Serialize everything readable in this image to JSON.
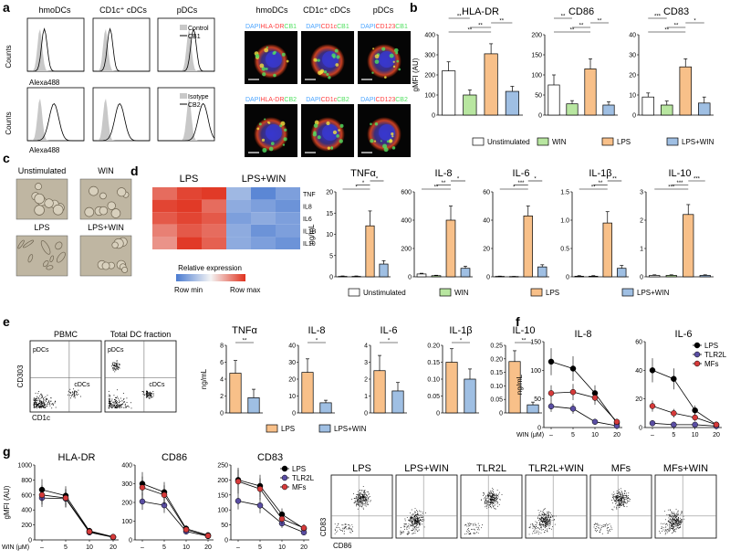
{
  "panel_letters": [
    "a",
    "b",
    "c",
    "d",
    "e",
    "f",
    "g"
  ],
  "colors": {
    "unstim": "#ffffff",
    "win": "#b8e6a0",
    "lps": "#f8c089",
    "lpswin": "#9fbfe3",
    "lpsLine": "#000000",
    "tlr2lLine": "#5a4ea3",
    "mfsLine": "#d63a3a",
    "fillCtrl": "#c8c8c8",
    "heatLow": "#4a7bd1",
    "heatHigh": "#e0321e"
  },
  "legend": [
    "Unstimulated",
    "WIN",
    "LPS",
    "LPS+WIN"
  ],
  "legend_short": [
    "LPS",
    "LPS+WIN"
  ],
  "a": {
    "headers": [
      "hmoDCs",
      "CD1c⁺ cDCs",
      "pDCs"
    ],
    "ylabel": "Counts",
    "xlabel": "Alexa488",
    "legend_top": [
      "Control",
      "CB1"
    ],
    "legend_bot": [
      "Isotype",
      "CB2"
    ],
    "micro_headers": [
      "hmoDCs",
      "CD1c⁺ cDCs",
      "pDCs"
    ],
    "stain_top": [
      [
        "DAPI",
        "HLA-DR",
        "CB1"
      ],
      [
        "DAPI",
        "CD1c",
        "CB1"
      ],
      [
        "DAPI",
        "CD123",
        "CB1"
      ]
    ],
    "stain_bot": [
      [
        "DAPI",
        "HLA-DR",
        "CB2"
      ],
      [
        "DAPI",
        "CD1c",
        "CB2"
      ],
      [
        "DAPI",
        "CD123",
        "CB2"
      ]
    ]
  },
  "chart_data": [
    {
      "panel": "b",
      "type": "bar",
      "title": "HLA-DR",
      "ylabel": "gMFI (AU)",
      "categories": [
        "Unstimulated",
        "WIN",
        "LPS",
        "LPS+WIN"
      ],
      "values": [
        220,
        100,
        305,
        118
      ],
      "errors": [
        45,
        25,
        50,
        25
      ],
      "ylim": [
        0,
        400
      ],
      "yticks": [
        "0",
        "100",
        "200",
        "300",
        "400"
      ],
      "sig": [
        "**",
        "**",
        "**",
        "**",
        "***",
        "***"
      ]
    },
    {
      "panel": "b",
      "type": "bar",
      "title": "CD86",
      "categories": [
        "Unstimulated",
        "WIN",
        "LPS",
        "LPS+WIN"
      ],
      "values": [
        75,
        28,
        115,
        25
      ],
      "errors": [
        25,
        8,
        25,
        8
      ],
      "ylim": [
        0,
        200
      ],
      "yticks": [
        "0",
        "50",
        "100",
        "150",
        "200"
      ],
      "sig": [
        "**",
        "**",
        "**",
        "**",
        "**"
      ]
    },
    {
      "panel": "b",
      "type": "bar",
      "title": "CD83",
      "categories": [
        "Unstimulated",
        "WIN",
        "LPS",
        "LPS+WIN"
      ],
      "values": [
        9,
        5,
        24,
        6
      ],
      "errors": [
        2,
        2,
        4,
        3
      ],
      "ylim": [
        0,
        40
      ],
      "yticks": [
        "0",
        "10",
        "20",
        "30",
        "40"
      ],
      "sig": [
        "**",
        "**",
        "*",
        "***",
        "**"
      ]
    },
    {
      "panel": "d",
      "type": "heatmap",
      "title": "",
      "columns": [
        "LPS",
        "LPS+WIN"
      ],
      "rows": [
        "TNF",
        "IL8",
        "IL6",
        "IL1B",
        "IL10"
      ],
      "values": [
        [
          0.85,
          0.95,
          0.98,
          0.25,
          0.05,
          0.15
        ],
        [
          0.95,
          0.98,
          0.85,
          0.2,
          0.15,
          0.1
        ],
        [
          0.9,
          0.95,
          0.9,
          0.15,
          0.2,
          0.15
        ],
        [
          0.8,
          0.9,
          0.85,
          0.2,
          0.1,
          0.15
        ],
        [
          0.75,
          0.98,
          0.88,
          0.2,
          0.15,
          0.1
        ]
      ],
      "legend_title": "Relative expression",
      "legend_min": "Row min",
      "legend_max": "Row max"
    },
    {
      "panel": "d",
      "type": "bar",
      "title": "TNFα",
      "ylabel": "ng/mL",
      "categories": [
        "Unstimulated",
        "WIN",
        "LPS",
        "LPS+WIN"
      ],
      "values": [
        0.1,
        0.1,
        12,
        3
      ],
      "errors": [
        0.1,
        0.1,
        3.5,
        0.8
      ],
      "ylim": [
        0,
        20
      ],
      "yticks": [
        "0",
        "5",
        "10",
        "15",
        "20"
      ],
      "sig": [
        "*",
        "*",
        "*",
        "*",
        "*",
        "*"
      ]
    },
    {
      "panel": "d",
      "type": "bar",
      "title": "IL-8",
      "categories": [
        "Unstimulated",
        "WIN",
        "LPS",
        "LPS+WIN"
      ],
      "values": [
        20,
        8,
        400,
        60
      ],
      "errors": [
        5,
        3,
        100,
        15
      ],
      "ylim": [
        0,
        600
      ],
      "yticks": [
        "0",
        "200",
        "400",
        "600"
      ],
      "sig": [
        "**",
        "**",
        "*",
        "**",
        "*"
      ]
    },
    {
      "panel": "d",
      "type": "bar",
      "title": "IL-6",
      "categories": [
        "Unstimulated",
        "WIN",
        "LPS",
        "LPS+WIN"
      ],
      "values": [
        0.3,
        0.2,
        43,
        7
      ],
      "errors": [
        0.2,
        0.1,
        7,
        1.5
      ],
      "ylim": [
        0,
        60
      ],
      "yticks": [
        "0",
        "20",
        "40",
        "60"
      ],
      "sig": [
        "*",
        "***",
        "*",
        "***",
        "***"
      ]
    },
    {
      "panel": "d",
      "type": "bar",
      "title": "IL-1β",
      "categories": [
        "Unstimulated",
        "WIN",
        "LPS",
        "LPS+WIN"
      ],
      "values": [
        0.01,
        0.01,
        0.95,
        0.15
      ],
      "errors": [
        0.01,
        0.01,
        0.2,
        0.05
      ],
      "ylim": [
        0,
        1.5
      ],
      "yticks": [
        "0",
        "0.5",
        "1.0",
        "1.5"
      ],
      "sig": [
        "**",
        "**",
        "**"
      ]
    },
    {
      "panel": "d",
      "type": "bar",
      "title": "IL-10",
      "categories": [
        "Unstimulated",
        "WIN",
        "LPS",
        "LPS+WIN"
      ],
      "values": [
        0.05,
        0.05,
        2.2,
        0.05
      ],
      "errors": [
        0.02,
        0.02,
        0.35,
        0.02
      ],
      "ylim": [
        0,
        3
      ],
      "yticks": [
        "0",
        "1",
        "2",
        "3"
      ],
      "sig": [
        "***",
        "***",
        "***"
      ]
    },
    {
      "panel": "e",
      "type": "bar",
      "title": "TNFα",
      "ylabel": "ng/mL",
      "categories": [
        "LPS",
        "LPS+WIN"
      ],
      "values": [
        4.7,
        1.8
      ],
      "errors": [
        1.5,
        1.0
      ],
      "ylim": [
        0,
        8
      ],
      "yticks": [
        "0",
        "2",
        "4",
        "6",
        "8"
      ],
      "sig": [
        "**"
      ]
    },
    {
      "panel": "e",
      "type": "bar",
      "title": "IL-8",
      "categories": [
        "LPS",
        "LPS+WIN"
      ],
      "values": [
        24,
        6
      ],
      "errors": [
        8,
        1.5
      ],
      "ylim": [
        0,
        40
      ],
      "yticks": [
        "0",
        "10",
        "20",
        "30",
        "40"
      ],
      "sig": [
        "*"
      ]
    },
    {
      "panel": "e",
      "type": "bar",
      "title": "IL-6",
      "categories": [
        "LPS",
        "LPS+WIN"
      ],
      "values": [
        2.5,
        1.3
      ],
      "errors": [
        0.9,
        0.5
      ],
      "ylim": [
        0,
        4
      ],
      "yticks": [
        "0",
        "1",
        "2",
        "3",
        "4"
      ],
      "sig": [
        "*"
      ]
    },
    {
      "panel": "e",
      "type": "bar",
      "title": "IL-1β",
      "categories": [
        "LPS",
        "LPS+WIN"
      ],
      "values": [
        0.15,
        0.1
      ],
      "errors": [
        0.04,
        0.03
      ],
      "ylim": [
        0,
        0.2
      ],
      "yticks": [
        "0",
        "0.05",
        "0.10",
        "0.15",
        "0.20"
      ],
      "sig": [
        "*"
      ]
    },
    {
      "panel": "e",
      "type": "bar",
      "title": "IL-10",
      "categories": [
        "LPS",
        "LPS+WIN"
      ],
      "values": [
        0.19,
        0.03
      ],
      "errors": [
        0.04,
        0.01
      ],
      "ylim": [
        0,
        0.25
      ],
      "yticks": [
        "0",
        "0.05",
        "0.10",
        "0.15",
        "0.20",
        "0.25"
      ],
      "sig": [
        "**"
      ]
    },
    {
      "panel": "f",
      "type": "line",
      "title": "IL-8",
      "ylabel": "ng/mL",
      "xlabel": "WIN (μM)",
      "x": [
        "–",
        "5",
        "10",
        "20"
      ],
      "series": [
        {
          "name": "LPS",
          "values": [
            115,
            103,
            60,
            8
          ]
        },
        {
          "name": "TLR2L",
          "values": [
            37,
            33,
            10,
            3
          ]
        },
        {
          "name": "MFs",
          "values": [
            60,
            62,
            52,
            10
          ]
        }
      ],
      "ylim": [
        0,
        150
      ],
      "yticks": [
        "0",
        "50",
        "100",
        "150"
      ]
    },
    {
      "panel": "f",
      "type": "line",
      "title": "IL-6",
      "x": [
        "–",
        "5",
        "10",
        "20"
      ],
      "series": [
        {
          "name": "LPS",
          "values": [
            40,
            34,
            12,
            2
          ]
        },
        {
          "name": "TLR2L",
          "values": [
            3,
            2,
            2,
            1
          ]
        },
        {
          "name": "MFs",
          "values": [
            15,
            10,
            7,
            2
          ]
        }
      ],
      "ylim": [
        0,
        60
      ],
      "yticks": [
        "0",
        "20",
        "40",
        "60"
      ],
      "legend": [
        "LPS",
        "TLR2L",
        "MFs"
      ]
    },
    {
      "panel": "g",
      "type": "line",
      "title": "HLA-DR",
      "ylabel": "gMFI (AU)",
      "xlabel": "WIN (μM)",
      "x": [
        "–",
        "5",
        "10",
        "20"
      ],
      "series": [
        {
          "name": "LPS",
          "values": [
            670,
            590,
            120,
            40
          ]
        },
        {
          "name": "TLR2L",
          "values": [
            560,
            550,
            100,
            35
          ]
        },
        {
          "name": "MFs",
          "values": [
            600,
            560,
            110,
            40
          ]
        }
      ],
      "ylim": [
        0,
        1000
      ],
      "yticks": [
        "0",
        "200",
        "400",
        "600",
        "800",
        "1000"
      ]
    },
    {
      "panel": "g",
      "type": "line",
      "title": "CD86",
      "x": [
        "–",
        "5",
        "10",
        "20"
      ],
      "series": [
        {
          "name": "LPS",
          "values": [
            300,
            255,
            60,
            25
          ]
        },
        {
          "name": "TLR2L",
          "values": [
            205,
            185,
            45,
            20
          ]
        },
        {
          "name": "MFs",
          "values": [
            280,
            240,
            55,
            22
          ]
        }
      ],
      "ylim": [
        0,
        400
      ],
      "yticks": [
        "0",
        "100",
        "200",
        "300",
        "400"
      ]
    },
    {
      "panel": "g",
      "type": "line",
      "title": "CD83",
      "x": [
        "–",
        "5",
        "10",
        "20"
      ],
      "series": [
        {
          "name": "LPS",
          "values": [
            200,
            180,
            85,
            38
          ]
        },
        {
          "name": "TLR2L",
          "values": [
            130,
            115,
            55,
            25
          ]
        },
        {
          "name": "MFs",
          "values": [
            195,
            170,
            70,
            40
          ]
        }
      ],
      "ylim": [
        0,
        250
      ],
      "yticks": [
        "0",
        "50",
        "100",
        "150",
        "200",
        "250"
      ],
      "legend": [
        "LPS",
        "TLR2L",
        "MFs"
      ]
    }
  ],
  "c": {
    "labels": [
      "Unstimulated",
      "WIN",
      "LPS",
      "LPS+WIN"
    ]
  },
  "e": {
    "facs_titles": [
      "PBMC",
      "Total DC fraction"
    ],
    "quad_top": "pDCs",
    "quad_right": "cDCs",
    "ylabel": "CD303",
    "xlabel": "CD1c"
  },
  "g": {
    "facs_titles": [
      "LPS",
      "LPS+WIN",
      "TLR2L",
      "TLR2L+WIN",
      "MFs",
      "MFs+WIN"
    ],
    "ylabel": "CD83",
    "xlabel": "CD86"
  }
}
